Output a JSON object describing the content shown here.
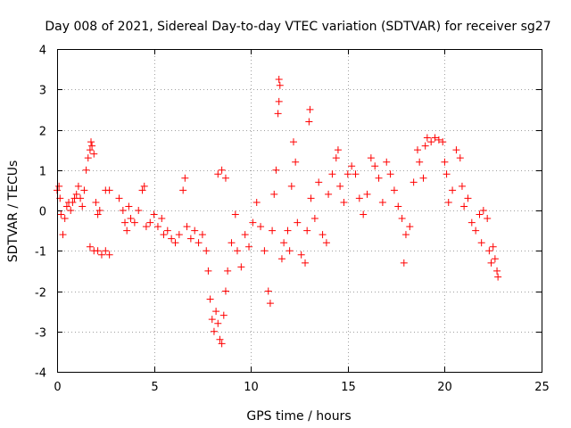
{
  "chart_data": {
    "type": "scatter",
    "title": "Day 008 of 2021, Sidereal Day-to-day VTEC variation (SDTVAR) for receiver sg27",
    "xlabel": "GPS time / hours",
    "ylabel": "SDTVAR / TECUs",
    "xlim": [
      0,
      25
    ],
    "ylim": [
      -4,
      4
    ],
    "xticks": [
      0,
      5,
      10,
      15,
      20,
      25
    ],
    "yticks": [
      -4,
      -3,
      -2,
      -1,
      0,
      1,
      2,
      3,
      4
    ],
    "grid": true,
    "marker": "+",
    "color": "#ff0000",
    "series": [
      {
        "name": "SDTVAR",
        "points": [
          [
            0.0,
            0.5
          ],
          [
            0.1,
            0.6
          ],
          [
            0.15,
            0.3
          ],
          [
            0.2,
            -0.1
          ],
          [
            0.3,
            -0.6
          ],
          [
            0.4,
            -0.2
          ],
          [
            0.5,
            0.1
          ],
          [
            0.6,
            0.2
          ],
          [
            0.7,
            0.0
          ],
          [
            0.8,
            0.2
          ],
          [
            0.9,
            0.3
          ],
          [
            1.0,
            0.4
          ],
          [
            1.1,
            0.6
          ],
          [
            1.2,
            0.3
          ],
          [
            1.3,
            0.1
          ],
          [
            1.4,
            0.5
          ],
          [
            1.5,
            1.0
          ],
          [
            1.6,
            1.3
          ],
          [
            1.7,
            1.5
          ],
          [
            1.75,
            1.7
          ],
          [
            1.8,
            1.6
          ],
          [
            1.9,
            1.4
          ],
          [
            2.0,
            0.2
          ],
          [
            2.1,
            -0.1
          ],
          [
            2.2,
            0.0
          ],
          [
            1.7,
            -0.9
          ],
          [
            1.9,
            -1.0
          ],
          [
            2.1,
            -1.0
          ],
          [
            2.3,
            -1.1
          ],
          [
            2.5,
            -1.0
          ],
          [
            2.7,
            -1.1
          ],
          [
            2.5,
            0.5
          ],
          [
            2.7,
            0.5
          ],
          [
            3.2,
            0.3
          ],
          [
            3.4,
            0.0
          ],
          [
            3.5,
            -0.3
          ],
          [
            3.6,
            -0.5
          ],
          [
            3.7,
            0.1
          ],
          [
            3.8,
            -0.2
          ],
          [
            4.0,
            -0.3
          ],
          [
            4.2,
            0.0
          ],
          [
            4.4,
            0.5
          ],
          [
            4.5,
            0.6
          ],
          [
            4.6,
            -0.4
          ],
          [
            4.8,
            -0.3
          ],
          [
            5.0,
            -0.1
          ],
          [
            5.2,
            -0.4
          ],
          [
            5.4,
            -0.2
          ],
          [
            5.5,
            -0.6
          ],
          [
            5.7,
            -0.5
          ],
          [
            5.9,
            -0.7
          ],
          [
            6.1,
            -0.8
          ],
          [
            6.3,
            -0.6
          ],
          [
            6.5,
            0.5
          ],
          [
            6.6,
            0.8
          ],
          [
            6.7,
            -0.4
          ],
          [
            6.9,
            -0.7
          ],
          [
            7.1,
            -0.5
          ],
          [
            7.3,
            -0.8
          ],
          [
            7.5,
            -0.6
          ],
          [
            7.7,
            -1.0
          ],
          [
            7.8,
            -1.5
          ],
          [
            7.9,
            -2.2
          ],
          [
            8.0,
            -2.7
          ],
          [
            8.1,
            -3.0
          ],
          [
            8.2,
            -2.5
          ],
          [
            8.3,
            -2.8
          ],
          [
            8.4,
            -3.2
          ],
          [
            8.5,
            -3.3
          ],
          [
            8.6,
            -2.6
          ],
          [
            8.7,
            -2.0
          ],
          [
            8.3,
            0.9
          ],
          [
            8.5,
            1.0
          ],
          [
            8.7,
            0.8
          ],
          [
            8.8,
            -1.5
          ],
          [
            9.0,
            -0.8
          ],
          [
            9.2,
            -0.1
          ],
          [
            9.3,
            -1.0
          ],
          [
            9.5,
            -1.4
          ],
          [
            9.7,
            -0.6
          ],
          [
            9.9,
            -0.9
          ],
          [
            10.1,
            -0.3
          ],
          [
            10.3,
            0.2
          ],
          [
            10.5,
            -0.4
          ],
          [
            10.7,
            -1.0
          ],
          [
            10.9,
            -2.0
          ],
          [
            11.0,
            -2.3
          ],
          [
            11.1,
            -0.5
          ],
          [
            11.2,
            0.4
          ],
          [
            11.3,
            1.0
          ],
          [
            11.4,
            2.4
          ],
          [
            11.45,
            2.7
          ],
          [
            11.5,
            3.1
          ],
          [
            11.45,
            3.25
          ],
          [
            11.6,
            -1.2
          ],
          [
            11.7,
            -0.8
          ],
          [
            11.9,
            -0.5
          ],
          [
            12.0,
            -1.0
          ],
          [
            12.1,
            0.6
          ],
          [
            12.2,
            1.7
          ],
          [
            12.3,
            1.2
          ],
          [
            12.4,
            -0.3
          ],
          [
            12.6,
            -1.1
          ],
          [
            12.8,
            -1.3
          ],
          [
            12.9,
            -0.5
          ],
          [
            13.0,
            2.2
          ],
          [
            13.05,
            2.5
          ],
          [
            13.1,
            0.3
          ],
          [
            13.3,
            -0.2
          ],
          [
            13.5,
            0.7
          ],
          [
            13.7,
            -0.6
          ],
          [
            13.9,
            -0.8
          ],
          [
            14.0,
            0.4
          ],
          [
            14.2,
            0.9
          ],
          [
            14.4,
            1.3
          ],
          [
            14.5,
            1.5
          ],
          [
            14.6,
            0.6
          ],
          [
            14.8,
            0.2
          ],
          [
            15.0,
            0.9
          ],
          [
            15.2,
            1.1
          ],
          [
            15.4,
            0.9
          ],
          [
            15.6,
            0.3
          ],
          [
            15.8,
            -0.1
          ],
          [
            16.0,
            0.4
          ],
          [
            16.2,
            1.3
          ],
          [
            16.4,
            1.1
          ],
          [
            16.6,
            0.8
          ],
          [
            16.8,
            0.2
          ],
          [
            17.0,
            1.2
          ],
          [
            17.2,
            0.9
          ],
          [
            17.4,
            0.5
          ],
          [
            17.6,
            0.1
          ],
          [
            17.8,
            -0.2
          ],
          [
            17.9,
            -1.3
          ],
          [
            18.0,
            -0.6
          ],
          [
            18.2,
            -0.4
          ],
          [
            18.4,
            0.7
          ],
          [
            18.6,
            1.5
          ],
          [
            18.7,
            1.2
          ],
          [
            18.9,
            0.8
          ],
          [
            19.0,
            1.6
          ],
          [
            19.1,
            1.8
          ],
          [
            19.3,
            1.7
          ],
          [
            19.5,
            1.8
          ],
          [
            19.7,
            1.75
          ],
          [
            19.9,
            1.7
          ],
          [
            20.0,
            1.2
          ],
          [
            20.1,
            0.9
          ],
          [
            20.2,
            0.2
          ],
          [
            20.4,
            0.5
          ],
          [
            20.6,
            1.5
          ],
          [
            20.8,
            1.3
          ],
          [
            20.9,
            0.6
          ],
          [
            21.0,
            0.1
          ],
          [
            21.2,
            0.3
          ],
          [
            21.4,
            -0.3
          ],
          [
            21.6,
            -0.5
          ],
          [
            21.8,
            -0.1
          ],
          [
            21.9,
            -0.8
          ],
          [
            22.0,
            0.0
          ],
          [
            22.2,
            -0.2
          ],
          [
            22.3,
            -1.0
          ],
          [
            22.4,
            -1.3
          ],
          [
            22.5,
            -0.9
          ],
          [
            22.6,
            -1.2
          ],
          [
            22.7,
            -1.5
          ],
          [
            22.75,
            -1.65
          ]
        ]
      }
    ]
  }
}
